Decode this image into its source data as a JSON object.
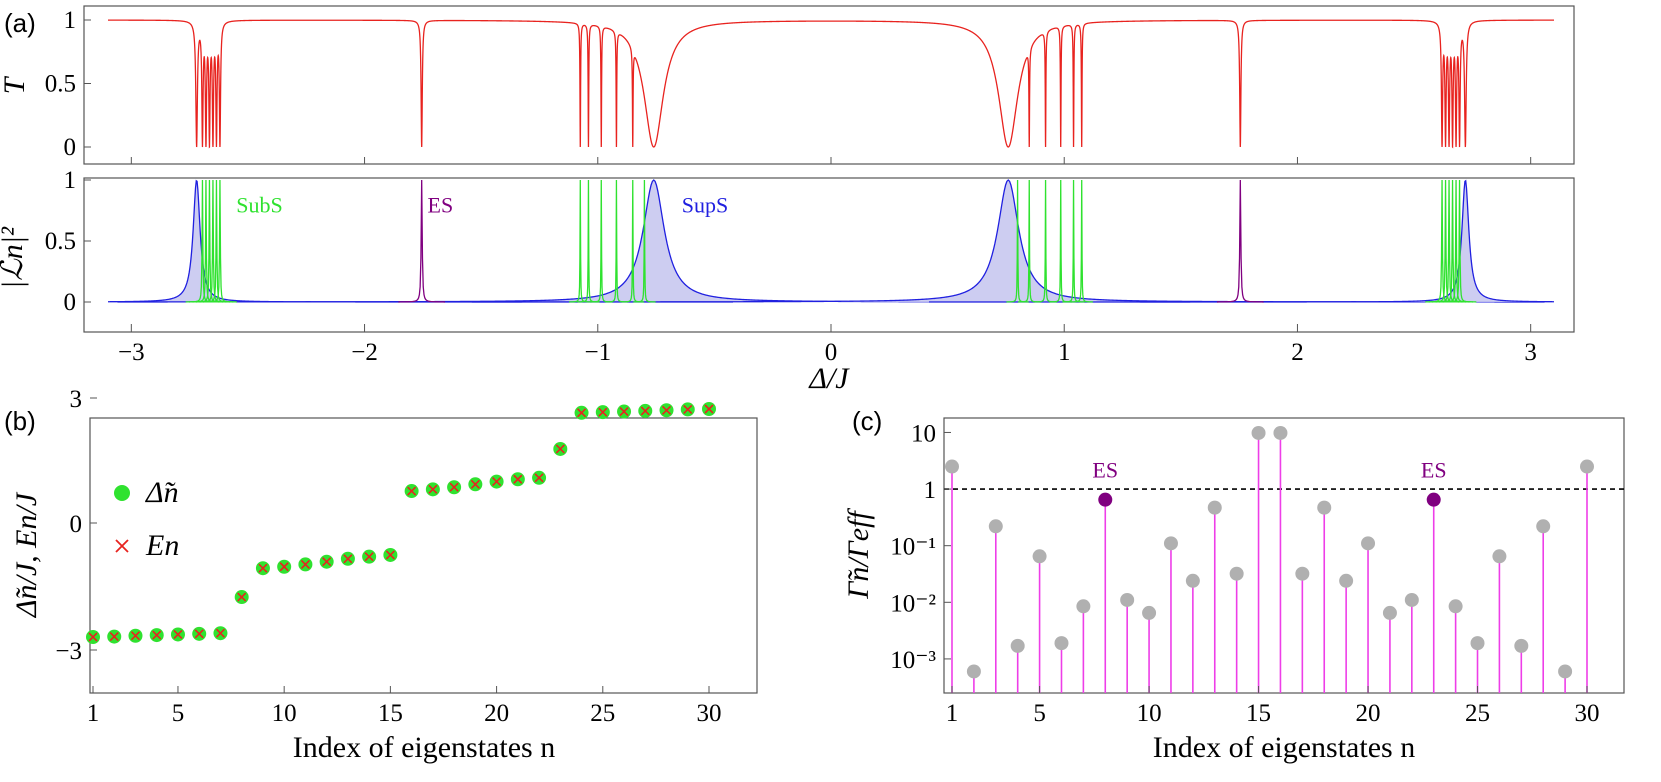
{
  "panels": {
    "a": {
      "label": "(a)",
      "top": {
        "ylabel": "T",
        "yticks": [
          {
            "v": 0,
            "t": "0"
          },
          {
            "v": 0.5,
            "t": "0.5"
          },
          {
            "v": 1,
            "t": "1"
          }
        ],
        "color": "#e8231f"
      },
      "bottom": {
        "ylabel": "|ℒn|²",
        "yticks": [
          {
            "v": 0,
            "t": "0"
          },
          {
            "v": 0.5,
            "t": "0.5"
          },
          {
            "v": 1,
            "t": "1"
          }
        ],
        "annotations": [
          {
            "text": "SubS",
            "x": -2.55,
            "y": 0.85,
            "color": "#2fe22f"
          },
          {
            "text": "ES",
            "x": -1.73,
            "y": 0.85,
            "color": "#800080"
          },
          {
            "text": "SupS",
            "x": -0.64,
            "y": 0.85,
            "color": "#2020e0"
          }
        ]
      },
      "xlabel": "Δ/J",
      "xticks": [
        {
          "v": -3,
          "t": "−3"
        },
        {
          "v": -2,
          "t": "−2"
        },
        {
          "v": -1,
          "t": "−1"
        },
        {
          "v": 0,
          "t": "0"
        },
        {
          "v": 1,
          "t": "1"
        },
        {
          "v": 2,
          "t": "2"
        },
        {
          "v": 3,
          "t": "3"
        }
      ]
    },
    "b": {
      "label": "(b)",
      "xlabel": "Index of eigenstates n",
      "ylabel": "Δ̃n/J, En/J",
      "xticks": [
        {
          "v": 1,
          "t": "1"
        },
        {
          "v": 5,
          "t": "5"
        },
        {
          "v": 10,
          "t": "10"
        },
        {
          "v": 15,
          "t": "15"
        },
        {
          "v": 20,
          "t": "20"
        },
        {
          "v": 25,
          "t": "25"
        },
        {
          "v": 30,
          "t": "30"
        }
      ],
      "yticks": [
        {
          "v": -3,
          "t": "−3"
        },
        {
          "v": 0,
          "t": "0"
        },
        {
          "v": 3,
          "t": "3"
        }
      ],
      "legend": [
        {
          "text": "Δ̃n",
          "symbol": "circle",
          "color": "#2fe22f"
        },
        {
          "text": "En",
          "symbol": "cross",
          "color": "#e8231f"
        }
      ]
    },
    "c": {
      "label": "(c)",
      "xlabel": "Index of eigenstates n",
      "ylabel": "Γ̃n/Γeff",
      "xticks": [
        {
          "v": 1,
          "t": "1"
        },
        {
          "v": 5,
          "t": "5"
        },
        {
          "v": 10,
          "t": "10"
        },
        {
          "v": 15,
          "t": "15"
        },
        {
          "v": 20,
          "t": "20"
        },
        {
          "v": 25,
          "t": "25"
        },
        {
          "v": 30,
          "t": "30"
        }
      ],
      "yticks": [
        {
          "v": 10,
          "t": "10"
        },
        {
          "v": 1,
          "t": "1"
        },
        {
          "v": 0.1,
          "t": "10⁻¹"
        },
        {
          "v": 0.01,
          "t": "10⁻²"
        },
        {
          "v": 0.001,
          "t": "10⁻³"
        }
      ],
      "es_labels": [
        {
          "n": 8,
          "text": "ES"
        },
        {
          "n": 23,
          "text": "ES"
        }
      ],
      "reference_line": 1
    }
  },
  "chart_data": [
    {
      "id": "a-top",
      "type": "line",
      "ylabel": "T",
      "xlim": [
        -3.1,
        3.1
      ],
      "ylim": [
        0,
        1
      ],
      "x_range": [
        -3.1,
        3.1
      ],
      "dips": [
        {
          "x0": -2.72,
          "w": 0.004
        },
        {
          "x0": -2.695,
          "w": 0.003
        },
        {
          "x0": -2.68,
          "w": 0.003
        },
        {
          "x0": -2.665,
          "w": 0.003
        },
        {
          "x0": -2.65,
          "w": 0.003
        },
        {
          "x0": -2.635,
          "w": 0.003
        },
        {
          "x0": -2.62,
          "w": 0.003
        },
        {
          "x0": -1.755,
          "w": 0.003
        },
        {
          "x0": -1.075,
          "w": 0.0015
        },
        {
          "x0": -1.04,
          "w": 0.0015
        },
        {
          "x0": -0.985,
          "w": 0.0015
        },
        {
          "x0": -0.92,
          "w": 0.0015
        },
        {
          "x0": -0.85,
          "w": 0.0015
        },
        {
          "x0": -0.76,
          "w": 0.05
        },
        {
          "x0": 0.76,
          "w": 0.05
        },
        {
          "x0": 0.85,
          "w": 0.0015
        },
        {
          "x0": 0.92,
          "w": 0.0015
        },
        {
          "x0": 0.985,
          "w": 0.0015
        },
        {
          "x0": 1.04,
          "w": 0.0015
        },
        {
          "x0": 1.075,
          "w": 0.0015
        },
        {
          "x0": 1.755,
          "w": 0.003
        },
        {
          "x0": 2.62,
          "w": 0.003
        },
        {
          "x0": 2.635,
          "w": 0.003
        },
        {
          "x0": 2.65,
          "w": 0.003
        },
        {
          "x0": 2.665,
          "w": 0.003
        },
        {
          "x0": 2.68,
          "w": 0.003
        },
        {
          "x0": 2.695,
          "w": 0.003
        },
        {
          "x0": 2.72,
          "w": 0.004
        }
      ]
    },
    {
      "id": "a-bottom",
      "type": "area",
      "xlim": [
        -3.1,
        3.1
      ],
      "ylim": [
        0,
        1
      ],
      "series": [
        {
          "name": "SupS",
          "color": "#2020e0",
          "fill": "#c8c8f0",
          "peaks": [
            {
              "x0": -2.72,
              "w": 0.018
            },
            {
              "x0": -0.76,
              "w": 0.055
            },
            {
              "x0": 0.76,
              "w": 0.055
            },
            {
              "x0": 2.72,
              "w": 0.018
            }
          ]
        },
        {
          "name": "SubS",
          "color": "#2fe22f",
          "peaks": [
            {
              "x0": -2.695,
              "w": 0.0018
            },
            {
              "x0": -2.68,
              "w": 0.0018
            },
            {
              "x0": -2.665,
              "w": 0.0018
            },
            {
              "x0": -2.65,
              "w": 0.0018
            },
            {
              "x0": -2.635,
              "w": 0.0018
            },
            {
              "x0": -2.62,
              "w": 0.0018
            },
            {
              "x0": -1.075,
              "w": 0.0012
            },
            {
              "x0": -1.04,
              "w": 0.0012
            },
            {
              "x0": -0.985,
              "w": 0.0012
            },
            {
              "x0": -0.92,
              "w": 0.0012
            },
            {
              "x0": -0.85,
              "w": 0.0012
            },
            {
              "x0": -0.8,
              "w": 0.0012
            },
            {
              "x0": 0.8,
              "w": 0.0012
            },
            {
              "x0": 0.85,
              "w": 0.0012
            },
            {
              "x0": 0.92,
              "w": 0.0012
            },
            {
              "x0": 0.985,
              "w": 0.0012
            },
            {
              "x0": 1.04,
              "w": 0.0012
            },
            {
              "x0": 1.075,
              "w": 0.0012
            },
            {
              "x0": 2.62,
              "w": 0.0018
            },
            {
              "x0": 2.635,
              "w": 0.0018
            },
            {
              "x0": 2.65,
              "w": 0.0018
            },
            {
              "x0": 2.665,
              "w": 0.0018
            },
            {
              "x0": 2.68,
              "w": 0.0018
            },
            {
              "x0": 2.695,
              "w": 0.0018
            }
          ]
        },
        {
          "name": "ES",
          "color": "#800080",
          "peaks": [
            {
              "x0": -1.755,
              "w": 0.0025
            },
            {
              "x0": 1.755,
              "w": 0.0025
            }
          ]
        }
      ]
    },
    {
      "id": "b",
      "type": "scatter",
      "xlim": [
        0.6,
        30.4
      ],
      "ylim": [
        -3,
        3
      ],
      "x": [
        1,
        2,
        3,
        4,
        5,
        6,
        7,
        8,
        9,
        10,
        11,
        12,
        13,
        14,
        15,
        16,
        17,
        18,
        19,
        20,
        21,
        22,
        23,
        24,
        25,
        26,
        27,
        28,
        29,
        30
      ],
      "series": [
        {
          "name": "Δ̃n",
          "values": [
            -2.71,
            -2.7,
            -2.68,
            -2.665,
            -2.65,
            -2.635,
            -2.62,
            -1.76,
            -1.075,
            -1.04,
            -0.985,
            -0.92,
            -0.85,
            -0.8,
            -0.76,
            0.76,
            0.8,
            0.85,
            0.92,
            0.985,
            1.04,
            1.075,
            1.76,
            2.62,
            2.635,
            2.65,
            2.665,
            2.68,
            2.7,
            2.71
          ]
        },
        {
          "name": "En",
          "values": [
            -2.71,
            -2.7,
            -2.68,
            -2.665,
            -2.65,
            -2.635,
            -2.62,
            -1.76,
            -1.075,
            -1.04,
            -0.985,
            -0.92,
            -0.85,
            -0.8,
            -0.76,
            0.76,
            0.8,
            0.85,
            0.92,
            0.985,
            1.04,
            1.075,
            1.76,
            2.62,
            2.635,
            2.65,
            2.665,
            2.68,
            2.7,
            2.71
          ]
        }
      ]
    },
    {
      "id": "c",
      "type": "scatter",
      "scale": "log",
      "xlim": [
        0.6,
        30.4
      ],
      "ylim": [
        0.00025,
        18
      ],
      "x": [
        1,
        2,
        3,
        4,
        5,
        6,
        7,
        8,
        9,
        10,
        11,
        12,
        13,
        14,
        15,
        16,
        17,
        18,
        19,
        20,
        21,
        22,
        23,
        24,
        25,
        26,
        27,
        28,
        29,
        30
      ],
      "values": [
        2.5,
        0.0006,
        0.22,
        0.0017,
        0.065,
        0.0019,
        0.0085,
        0.65,
        0.011,
        0.0065,
        0.11,
        0.024,
        0.47,
        0.032,
        9.8,
        9.8,
        0.032,
        0.47,
        0.024,
        0.11,
        0.0065,
        0.011,
        0.65,
        0.0085,
        0.0019,
        0.065,
        0.0017,
        0.22,
        0.0006,
        2.5
      ],
      "highlight": [
        8,
        23
      ]
    }
  ]
}
